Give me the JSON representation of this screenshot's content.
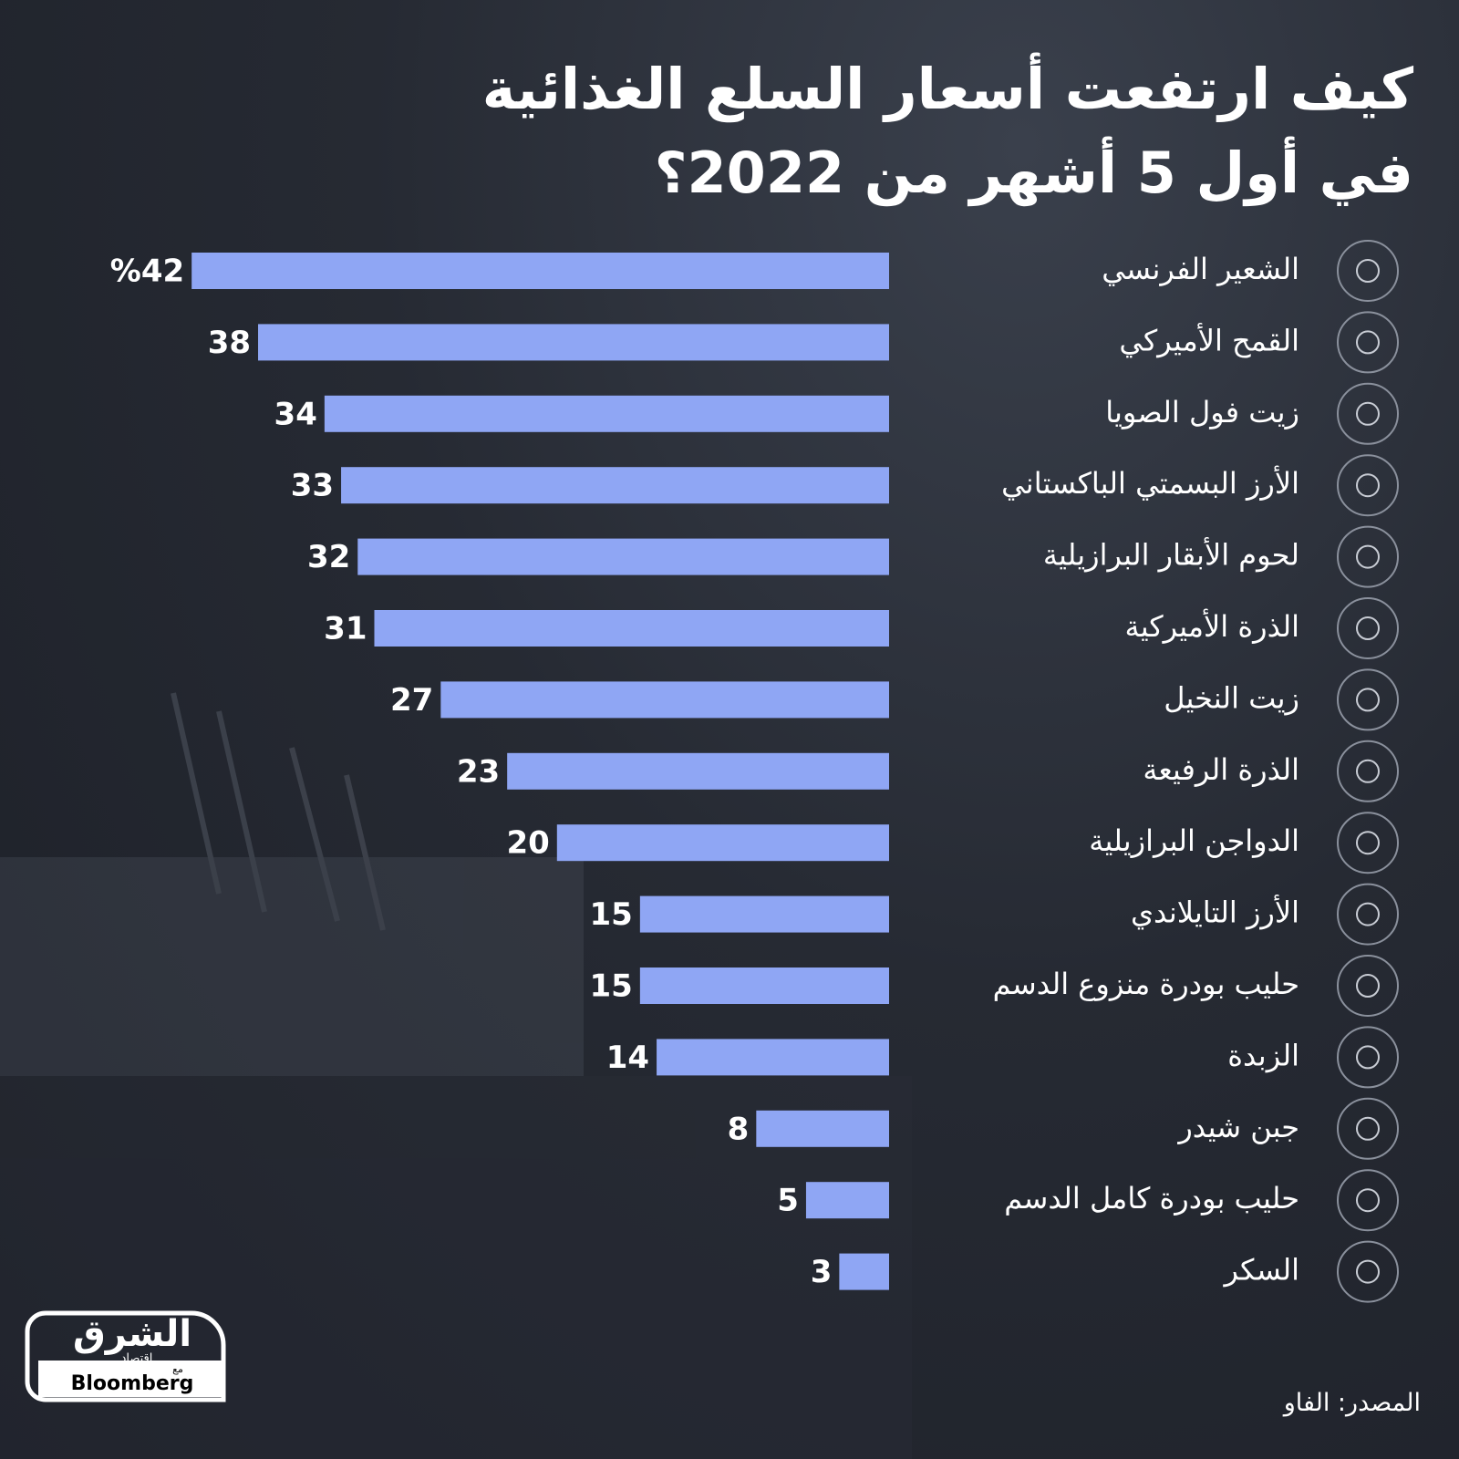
{
  "chart_data": {
    "type": "bar",
    "orientation": "horizontal",
    "title": "كيف ارتفعت أسعار السلع الغذائية في أول 5 أشهر من 2022؟",
    "categories": [
      "الشعير الفرنسي",
      "القمح الأميركي",
      "زيت فول الصويا",
      "الأرز البسمتي الباكستاني",
      "لحوم الأبقار البرازيلية",
      "الذرة الأميركية",
      "زيت النخيل",
      "الذرة الرفيعة",
      "الدواجن البرازيلية",
      "الأرز التايلاندي",
      "حليب بودرة منزوع الدسم",
      "الزبدة",
      "جبن شيدر",
      "حليب بودرة كامل الدسم",
      "السكر"
    ],
    "values": [
      42,
      38,
      34,
      33,
      32,
      31,
      27,
      23,
      20,
      15,
      15,
      14,
      8,
      5,
      3
    ],
    "value_labels": [
      "%42",
      "38",
      "34",
      "33",
      "32",
      "31",
      "27",
      "23",
      "20",
      "15",
      "15",
      "14",
      "8",
      "5",
      "3"
    ],
    "color": "#8fa6f4",
    "source": "المصدر: الفاو"
  },
  "logo": {
    "name": "الشرق",
    "tagline": "اقتصاد",
    "with": "مع",
    "partner": "Bloomberg"
  }
}
